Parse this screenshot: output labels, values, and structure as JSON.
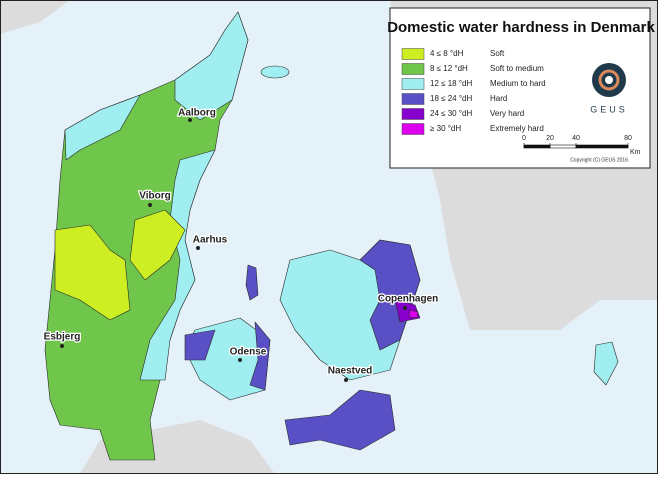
{
  "title": "Domestic water hardness in Denmark",
  "legend": [
    {
      "range": "4 ≤ 8 °dH",
      "label": "Soft",
      "color": "#ccee22"
    },
    {
      "range": "8 ≤ 12 °dH",
      "label": "Soft to medium",
      "color": "#6fc64a"
    },
    {
      "range": "12 ≤ 18 °dH",
      "label": "Medium to hard",
      "color": "#a0eef0"
    },
    {
      "range": "18 ≤ 24 °dH",
      "label": "Hard",
      "color": "#5a50c6"
    },
    {
      "range": "24 ≤ 30 °dH",
      "label": "Very hard",
      "color": "#8800cc"
    },
    {
      "range": "≥ 30 °dH",
      "label": "Extremely hard",
      "color": "#dd00ee"
    }
  ],
  "cities": [
    "Aalborg",
    "Viborg",
    "Aarhus",
    "Esbjerg",
    "Odense",
    "Copenhagen",
    "Naestved"
  ],
  "logo": "GEUS",
  "scale_bar": {
    "ticks": [
      0,
      20,
      40,
      80
    ],
    "unit": "Km"
  },
  "copyright": "Copyright (C) GEUS 2016"
}
